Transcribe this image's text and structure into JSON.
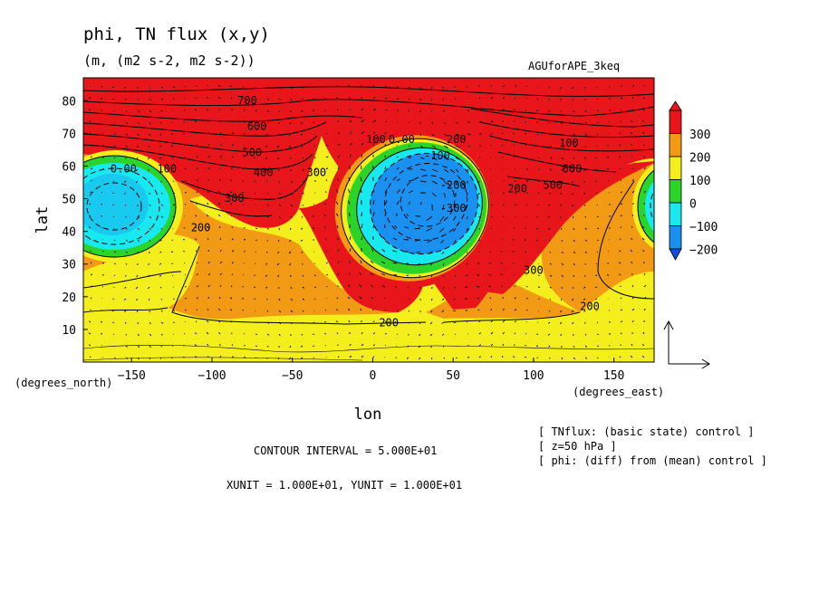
{
  "title": "phi, TN flux (x,y)",
  "subtitle": "(m, (m2 s-2, m2 s-2))",
  "case_label": "AGUforAPE_3keq",
  "chart_data": {
    "type": "heatmap",
    "xlabel": "lon",
    "ylabel": "lat",
    "x_units": "(degrees_east)",
    "y_units": "(degrees_north)",
    "xlim": [
      -180,
      175
    ],
    "ylim": [
      0,
      87
    ],
    "xticks": [
      -150,
      -100,
      -50,
      0,
      50,
      100,
      150
    ],
    "yticks": [
      10,
      20,
      30,
      40,
      50,
      60,
      70,
      80
    ],
    "colorbar": {
      "levels": [
        300,
        200,
        100,
        0,
        -100,
        -200
      ],
      "colors": [
        "#e8161a",
        "#f29a14",
        "#f4ef1c",
        "#2ad42a",
        "#18e8f0",
        "#1a90f0",
        "#1450e0"
      ]
    },
    "contour_labels": [
      {
        "text": "700",
        "lon": -78,
        "lat": 79
      },
      {
        "text": "600",
        "lon": -72,
        "lat": 71
      },
      {
        "text": "500",
        "lon": -75,
        "lat": 63
      },
      {
        "text": "400",
        "lon": -68,
        "lat": 57
      },
      {
        "text": "300",
        "lon": -86,
        "lat": 49
      },
      {
        "text": "200",
        "lon": -107,
        "lat": 40
      },
      {
        "text": "300",
        "lon": -35,
        "lat": 57
      },
      {
        "text": "0.00",
        "lon": -155,
        "lat": 58
      },
      {
        "text": "100",
        "lon": -128,
        "lat": 58
      },
      {
        "text": "100",
        "lon": 2,
        "lat": 67
      },
      {
        "text": "0.00",
        "lon": 18,
        "lat": 67
      },
      {
        "text": "200",
        "lon": 52,
        "lat": 67
      },
      {
        "text": "-100",
        "lon": 40,
        "lat": 62
      },
      {
        "text": "-200",
        "lon": 50,
        "lat": 53
      },
      {
        "text": "-300",
        "lon": 50,
        "lat": 46
      },
      {
        "text": "200",
        "lon": 90,
        "lat": 52
      },
      {
        "text": "300",
        "lon": 100,
        "lat": 27
      },
      {
        "text": "100",
        "lon": 122,
        "lat": 66
      },
      {
        "text": "600",
        "lon": 124,
        "lat": 58
      },
      {
        "text": "500",
        "lon": 112,
        "lat": 53
      },
      {
        "text": "200",
        "lon": 135,
        "lat": 16
      },
      {
        "text": "200",
        "lon": 10,
        "lat": 11
      }
    ]
  },
  "reference_vector": {
    "xunit": 10,
    "yunit": 10
  },
  "footer": {
    "contour_interval": "CONTOUR INTERVAL = 5.000E+01",
    "units": "XUNIT = 1.000E+01, YUNIT = 1.000E+01",
    "meta1": "[ TNflux: (basic state) control ]",
    "meta2": "[ z=50 hPa ]",
    "meta3": "[ phi: (diff) from (mean) control ]"
  }
}
